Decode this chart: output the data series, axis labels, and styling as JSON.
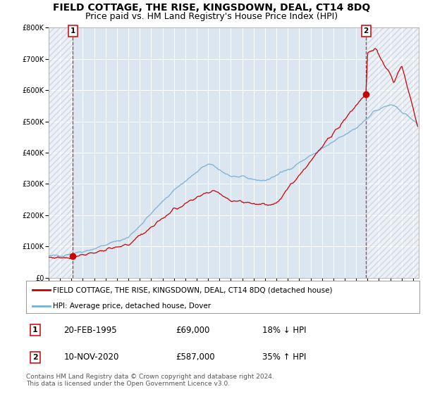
{
  "title": "FIELD COTTAGE, THE RISE, KINGSDOWN, DEAL, CT14 8DQ",
  "subtitle": "Price paid vs. HM Land Registry's House Price Index (HPI)",
  "ylim": [
    0,
    800000
  ],
  "yticks": [
    0,
    100000,
    200000,
    300000,
    400000,
    500000,
    600000,
    700000,
    800000
  ],
  "ytick_labels": [
    "£0",
    "£100K",
    "£200K",
    "£300K",
    "£400K",
    "£500K",
    "£600K",
    "£700K",
    "£800K"
  ],
  "xlim_start": 1993.0,
  "xlim_end": 2025.5,
  "xticks": [
    1993,
    1994,
    1995,
    1996,
    1997,
    1998,
    1999,
    2000,
    2001,
    2002,
    2003,
    2004,
    2005,
    2006,
    2007,
    2008,
    2009,
    2010,
    2011,
    2012,
    2013,
    2014,
    2015,
    2016,
    2017,
    2018,
    2019,
    2020,
    2021,
    2022,
    2023,
    2024,
    2025
  ],
  "plot_bg_color": "#dce6f1",
  "hatch_region_end": 1995.13,
  "sale1_x": 1995.13,
  "sale1_y": 69000,
  "sale1_label": "1",
  "sale2_x": 2020.87,
  "sale2_y": 587000,
  "sale2_label": "2",
  "red_line_color": "#cc0000",
  "blue_line_color": "#7bafd4",
  "dashed_line_color": "#cc0000",
  "legend_red_label": "FIELD COTTAGE, THE RISE, KINGSDOWN, DEAL, CT14 8DQ (detached house)",
  "legend_blue_label": "HPI: Average price, detached house, Dover",
  "table_row1": [
    "1",
    "20-FEB-1995",
    "£69,000",
    "18% ↓ HPI"
  ],
  "table_row2": [
    "2",
    "10-NOV-2020",
    "£587,000",
    "35% ↑ HPI"
  ],
  "footer": "Contains HM Land Registry data © Crown copyright and database right 2024.\nThis data is licensed under the Open Government Licence v3.0.",
  "title_fontsize": 10,
  "subtitle_fontsize": 9,
  "tick_fontsize": 7
}
